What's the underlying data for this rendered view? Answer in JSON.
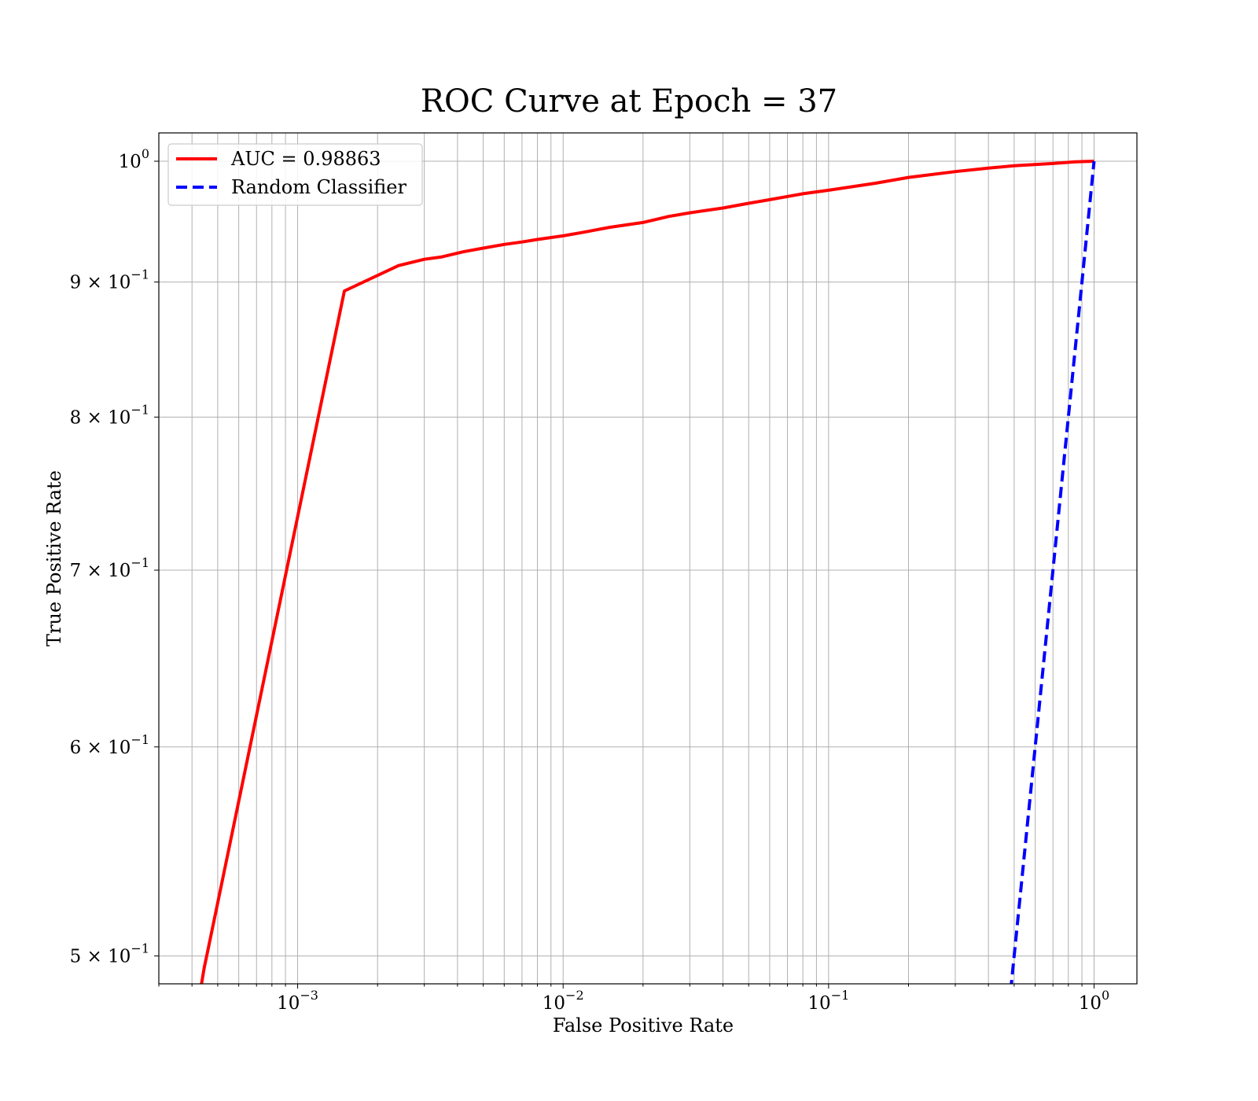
{
  "chart_data": {
    "type": "line",
    "title": "ROC Curve at Epoch = 37",
    "xlabel": "False Positive Rate",
    "ylabel": "True Positive Rate",
    "xscale": "log",
    "yscale": "log",
    "xlim": [
      0.0003,
      1.45
    ],
    "ylim": [
      0.488,
      1.025
    ],
    "grid": true,
    "grid_which": "both",
    "legend_position": "top-left",
    "x_ticks": [
      {
        "value": 0.001,
        "base": "10",
        "exp": "−3"
      },
      {
        "value": 0.01,
        "base": "10",
        "exp": "−2"
      },
      {
        "value": 0.1,
        "base": "10",
        "exp": "−1"
      },
      {
        "value": 1,
        "base": "10",
        "exp": "0"
      }
    ],
    "y_ticks": [
      {
        "value": 1.0,
        "base": "10",
        "exp": "0"
      },
      {
        "value": 0.9,
        "base": "9 × 10",
        "exp": "−1"
      },
      {
        "value": 0.8,
        "base": "8 × 10",
        "exp": "−1"
      },
      {
        "value": 0.7,
        "base": "7 × 10",
        "exp": "−1"
      },
      {
        "value": 0.6,
        "base": "6 × 10",
        "exp": "−1"
      },
      {
        "value": 0.5,
        "base": "5 × 10",
        "exp": "−1"
      }
    ],
    "series": [
      {
        "name": "AUC = 0.98863",
        "color": "#ff0000",
        "style": "solid",
        "x": [
          0.00043,
          0.000445,
          0.00046,
          0.0015,
          0.0024,
          0.003,
          0.0035,
          0.0042,
          0.005,
          0.006,
          0.007,
          0.008,
          0.01,
          0.012,
          0.015,
          0.02,
          0.025,
          0.03,
          0.04,
          0.05,
          0.06,
          0.08,
          0.1,
          0.15,
          0.2,
          0.3,
          0.4,
          0.5,
          0.7,
          0.85,
          1.0
        ],
        "y": [
          0.485,
          0.495,
          0.503,
          0.893,
          0.913,
          0.918,
          0.92,
          0.924,
          0.927,
          0.93,
          0.932,
          0.934,
          0.937,
          0.94,
          0.944,
          0.948,
          0.953,
          0.956,
          0.96,
          0.964,
          0.967,
          0.972,
          0.975,
          0.981,
          0.986,
          0.991,
          0.994,
          0.996,
          0.998,
          0.9995,
          1.0
        ]
      },
      {
        "name": "Random Classifier",
        "color": "#0000ff",
        "style": "dashed",
        "x": [
          0.485,
          0.6,
          0.7,
          0.8,
          0.9,
          1.0
        ],
        "y": [
          0.485,
          0.6,
          0.7,
          0.8,
          0.9,
          1.0
        ]
      }
    ]
  }
}
